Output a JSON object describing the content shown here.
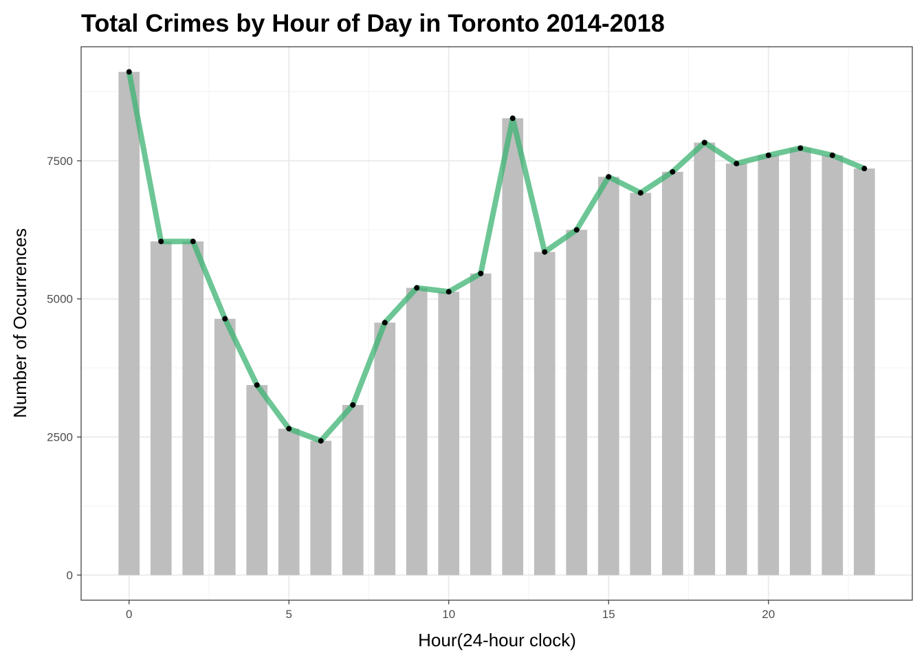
{
  "chart_data": {
    "type": "bar",
    "title": "Total Crimes by Hour of Day in Toronto 2014-2018",
    "xlabel": "Hour(24-hour clock)",
    "ylabel": "Number of Occurrences",
    "x": [
      0,
      1,
      2,
      3,
      4,
      5,
      6,
      7,
      8,
      9,
      10,
      11,
      12,
      13,
      14,
      15,
      16,
      17,
      18,
      19,
      20,
      21,
      22,
      23
    ],
    "series": [
      {
        "type": "bar",
        "values": [
          9110,
          6040,
          6040,
          4640,
          3440,
          2650,
          2430,
          3080,
          4570,
          5200,
          5130,
          5460,
          8270,
          5850,
          6250,
          7210,
          6920,
          7300,
          7830,
          7450,
          7600,
          7730,
          7600,
          7360
        ]
      },
      {
        "type": "line",
        "values": [
          9110,
          6040,
          6040,
          4640,
          3440,
          2650,
          2430,
          3080,
          4570,
          5200,
          5130,
          5460,
          8270,
          5850,
          6250,
          7210,
          6920,
          7300,
          7830,
          7450,
          7600,
          7730,
          7600,
          7360
        ]
      }
    ],
    "xlim": [
      -1.5,
      24.5
    ],
    "ylim": [
      -455,
      9565
    ],
    "x_ticks": [
      0,
      5,
      10,
      15,
      20
    ],
    "y_ticks": [
      0,
      2500,
      5000,
      7500
    ],
    "x_tick_labels": [
      "0",
      "5",
      "10",
      "15",
      "20"
    ],
    "y_tick_labels": [
      "0",
      "2500",
      "5000",
      "7500"
    ],
    "grid": true,
    "legend": "none",
    "colors": {
      "bar": "#bebebe",
      "line": "#3cb371",
      "point": "#000000",
      "grid_major": "#ebebeb",
      "grid_minor": "#f2f2f2",
      "panel_border": "#333333",
      "axis_text": "#4d4d4d"
    }
  }
}
